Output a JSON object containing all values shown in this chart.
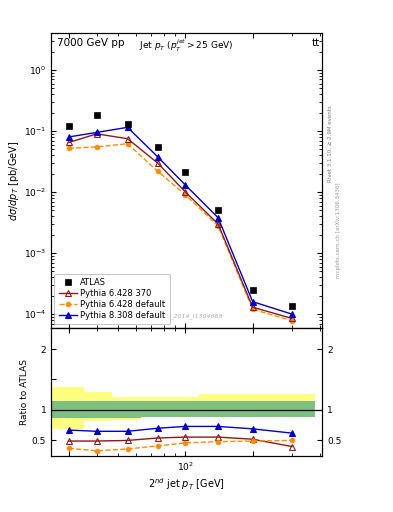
{
  "title_top": "7000 GeV pp",
  "title_top_right": "tt",
  "main_title": "Jet $p_T$ ($p_T^{jet}>25$ GeV)",
  "right_label1": "Rivet 3.1.10, ≥ 2.9M events",
  "right_label2": "mcplots.cern.ch [arXiv:1306.3436]",
  "watermark": "ATLAS_2014_I1304688",
  "xlabel": "2$^{nd}$ jet $p_T$ [GeV]",
  "ylabel_main": "$d\\sigma/dp_T$ [pb/GeV]",
  "ylabel_ratio": "Ratio to ATLAS",
  "xlim": [
    25,
    410
  ],
  "ylim_main": [
    6e-05,
    4.0
  ],
  "ylim_ratio": [
    0.25,
    2.35
  ],
  "atlas_x": [
    30,
    40,
    55,
    75,
    100,
    140,
    200,
    300
  ],
  "atlas_y": [
    0.12,
    0.18,
    0.13,
    0.055,
    0.021,
    0.005,
    0.00025,
    0.000135
  ],
  "p628_370_y": [
    0.065,
    0.09,
    0.075,
    0.03,
    0.01,
    0.003,
    0.00013,
    8.5e-05
  ],
  "p628_def_y": [
    0.052,
    0.055,
    0.062,
    0.022,
    0.009,
    0.0028,
    0.00012,
    7.8e-05
  ],
  "p8308_def_y": [
    0.08,
    0.095,
    0.115,
    0.038,
    0.013,
    0.0038,
    0.00016,
    0.0001
  ],
  "ratio_p628_370": [
    0.49,
    0.49,
    0.5,
    0.54,
    0.555,
    0.555,
    0.52,
    0.4
  ],
  "ratio_p628_def": [
    0.37,
    0.33,
    0.36,
    0.41,
    0.46,
    0.48,
    0.49,
    0.5
  ],
  "ratio_p8308_def": [
    0.67,
    0.65,
    0.65,
    0.7,
    0.73,
    0.73,
    0.69,
    0.62
  ],
  "yband_x_edges": [
    25,
    35,
    47,
    63,
    87,
    115,
    160,
    240,
    380
  ],
  "green_lo": [
    0.86,
    0.86,
    0.86,
    0.88,
    0.88,
    0.88,
    0.88,
    0.88
  ],
  "green_hi": [
    1.15,
    1.15,
    1.15,
    1.15,
    1.15,
    1.15,
    1.15,
    1.15
  ],
  "yellow_lo": [
    0.68,
    0.82,
    0.84,
    0.88,
    0.88,
    0.88,
    0.88,
    0.88
  ],
  "yellow_hi": [
    1.38,
    1.3,
    1.22,
    1.22,
    1.22,
    1.26,
    1.26,
    1.26
  ],
  "color_atlas": "#000000",
  "color_p628_370": "#8B1A1A",
  "color_p628_def": "#FF8C00",
  "color_p8308": "#0000CC",
  "color_green": "#7FBF7F",
  "color_yellow": "#FFFF80"
}
